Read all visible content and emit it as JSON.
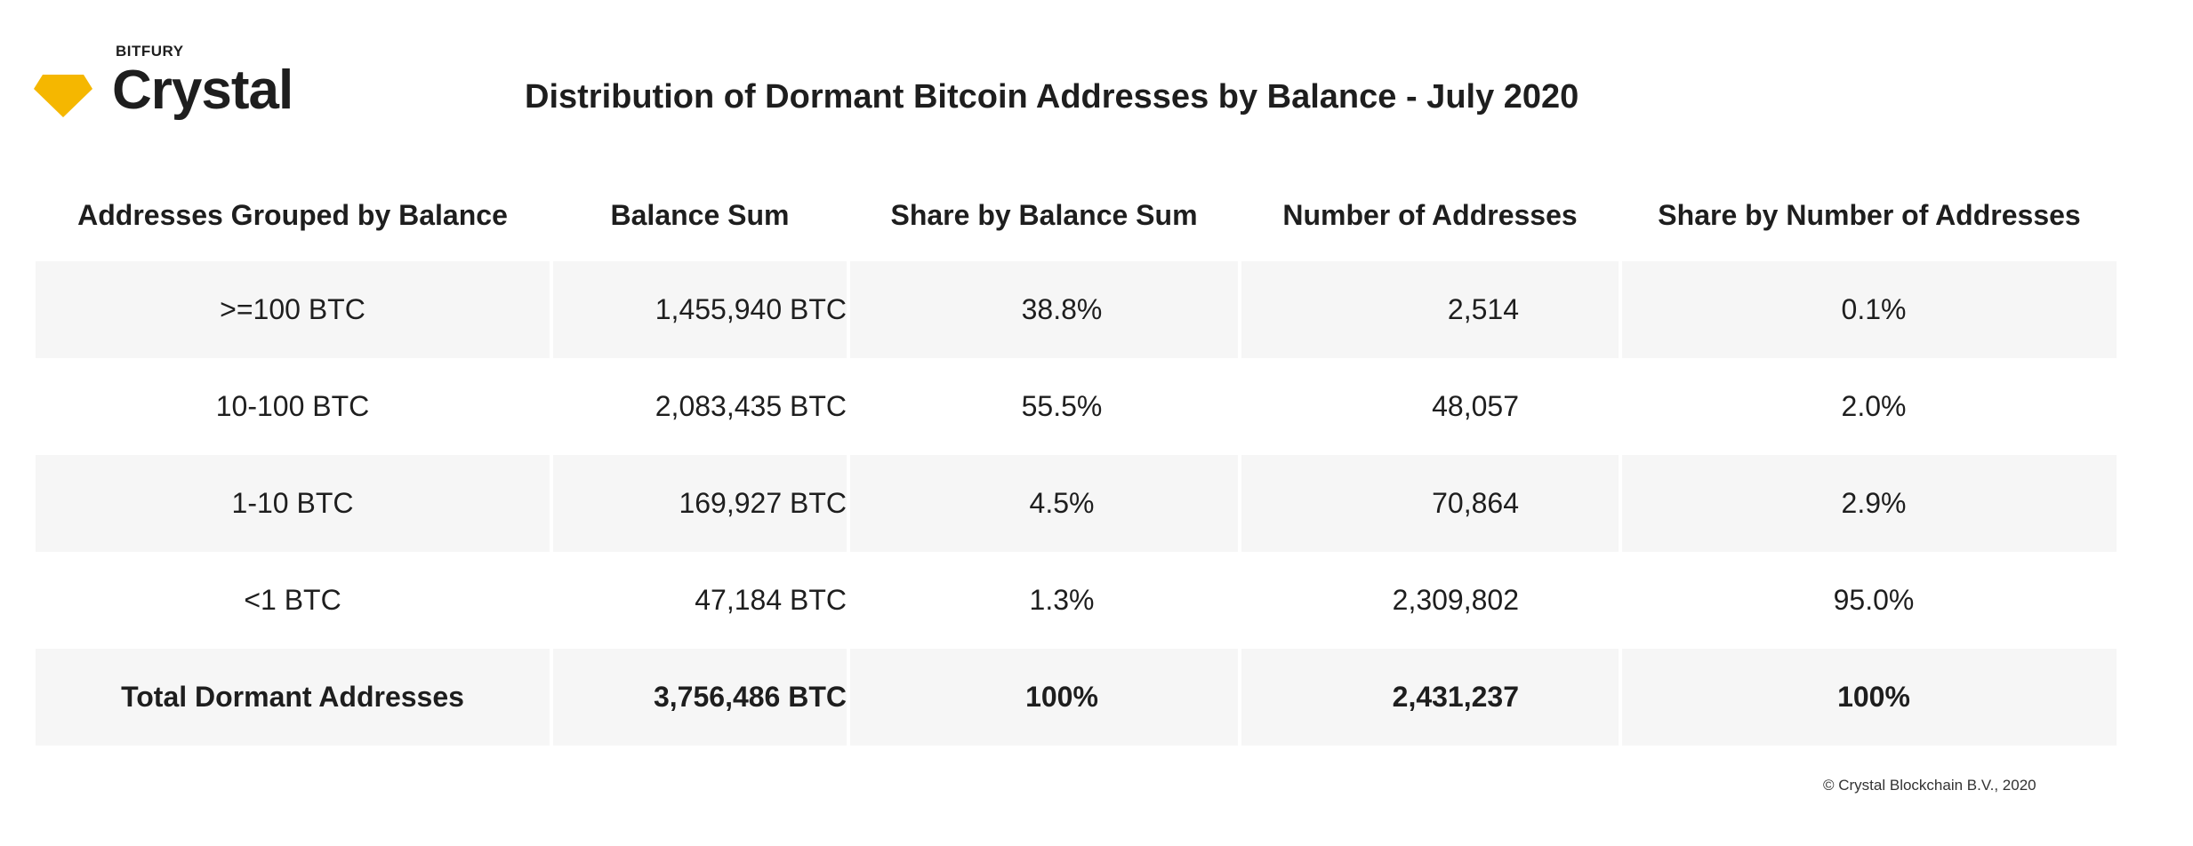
{
  "brand": {
    "small_label": "BITFURY",
    "name": "Crystal",
    "accent_color": "#F5B700",
    "icon": "diamond-icon"
  },
  "title": "Distribution of Dormant Bitcoin Addresses by Balance - July 2020",
  "table": {
    "headers": [
      "Addresses Grouped by Balance",
      "Balance Sum",
      "Share by Balance Sum",
      "Number of Addresses",
      "Share by Number of Addresses"
    ],
    "rows": [
      [
        "&gt;=100 BTC",
        "1,455,940 BTC",
        "38.8%",
        "2,514",
        "0.1%"
      ],
      [
        "10-100 BTC",
        "2,083,435 BTC",
        "55.5%",
        "48,057",
        "2.0%"
      ],
      [
        "1-10 BTC",
        "169,927 BTC",
        "4.5%",
        "70,864",
        "2.9%"
      ],
      [
        "&lt;1 BTC",
        "47,184 BTC",
        "1.3%",
        "2,309,802",
        "95.0%"
      ]
    ],
    "total": [
      "Total Dormant Addresses",
      "3,756,486 BTC",
      "100%",
      "2,431,237",
      "100%"
    ]
  },
  "footer": "© Crystal Blockchain B.V., 2020"
}
